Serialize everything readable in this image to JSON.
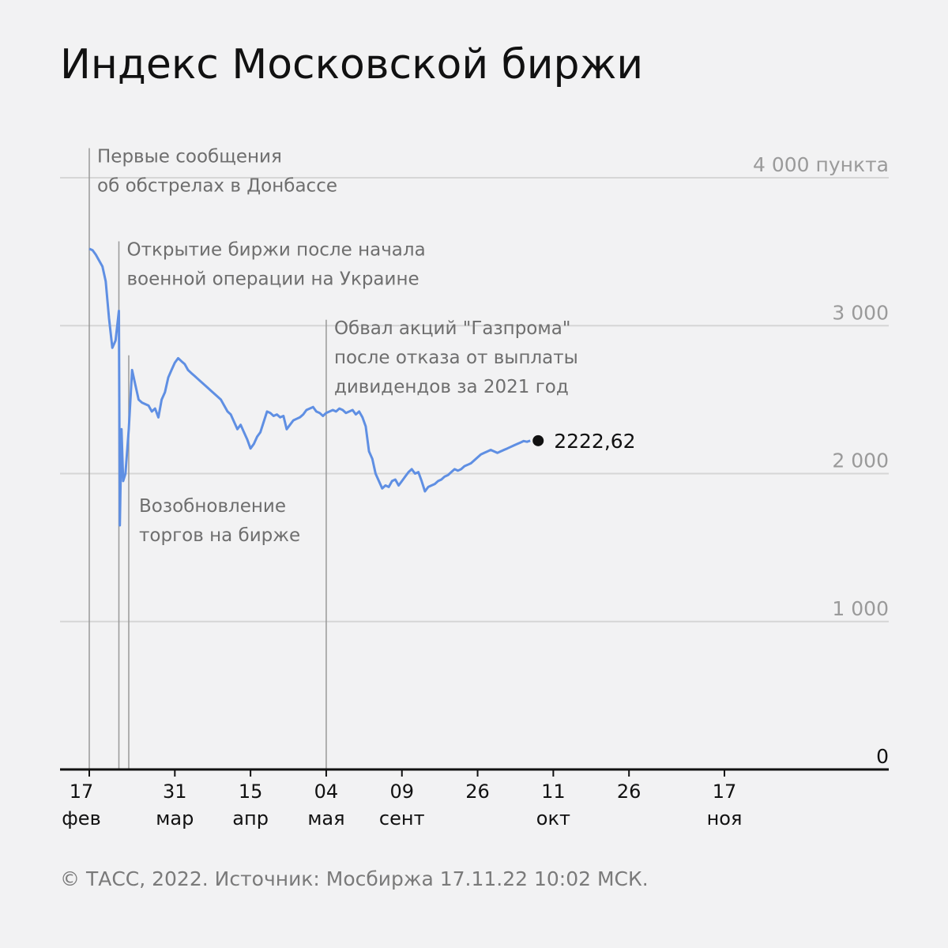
{
  "title": "Индекс Московской биржи",
  "footer": "© ТАСС, 2022. Источник: Мосбиржа 17.11.22 10:02 МСК.",
  "colors": {
    "line": "#5f8fe3",
    "grid": "#d6d6d6",
    "annotation_line": "#999999",
    "annotation_text": "#6e6e6e",
    "tick_text_y": "#9a9a9a",
    "axis": "#111111"
  },
  "chart_data": {
    "type": "line",
    "ylim": [
      0,
      4000
    ],
    "y_ticks": [
      {
        "value": 0,
        "label": "0"
      },
      {
        "value": 1000,
        "label": "1 000"
      },
      {
        "value": 2000,
        "label": "2 000"
      },
      {
        "value": 3000,
        "label": "3 000"
      },
      {
        "value": 4000,
        "label": "4 000 пункта"
      }
    ],
    "x_ticks": [
      {
        "line1": "17",
        "line2": "фев",
        "at": 0
      },
      {
        "line1": "31",
        "line2": "мар",
        "at": 26
      },
      {
        "line1": "15",
        "line2": "апр",
        "at": 49
      },
      {
        "line1": "04",
        "line2": "мая",
        "at": 72
      },
      {
        "line1": "09",
        "line2": "сент",
        "at": 95
      },
      {
        "line1": "26",
        "line2": "",
        "at": 118
      },
      {
        "line1": "11",
        "line2": "окт",
        "at": 141
      },
      {
        "line1": "26",
        "line2": "",
        "at": 164
      },
      {
        "line1": "17",
        "line2": "ноя",
        "at": 193
      }
    ],
    "series": [
      {
        "values": [
          [
            0,
            3520
          ],
          [
            1,
            3510
          ],
          [
            2,
            3480
          ],
          [
            3,
            3440
          ],
          [
            4,
            3400
          ],
          [
            5,
            3300
          ],
          [
            6,
            3050
          ],
          [
            7,
            2850
          ],
          [
            8,
            2900
          ],
          [
            9,
            3100
          ],
          [
            9.3,
            1650
          ],
          [
            9.8,
            2300
          ],
          [
            10.3,
            1950
          ],
          [
            11,
            2000
          ],
          [
            12,
            2300
          ],
          [
            13,
            2700
          ],
          [
            14,
            2600
          ],
          [
            15,
            2500
          ],
          [
            16,
            2480
          ],
          [
            17,
            2470
          ],
          [
            18,
            2460
          ],
          [
            19,
            2420
          ],
          [
            20,
            2440
          ],
          [
            21,
            2380
          ],
          [
            22,
            2500
          ],
          [
            23,
            2550
          ],
          [
            24,
            2650
          ],
          [
            25,
            2700
          ],
          [
            26,
            2750
          ],
          [
            27,
            2780
          ],
          [
            28,
            2760
          ],
          [
            29,
            2740
          ],
          [
            30,
            2700
          ],
          [
            31,
            2680
          ],
          [
            32,
            2660
          ],
          [
            33,
            2640
          ],
          [
            34,
            2620
          ],
          [
            35,
            2600
          ],
          [
            36,
            2580
          ],
          [
            37,
            2560
          ],
          [
            38,
            2540
          ],
          [
            39,
            2520
          ],
          [
            40,
            2500
          ],
          [
            41,
            2460
          ],
          [
            42,
            2420
          ],
          [
            43,
            2400
          ],
          [
            44,
            2350
          ],
          [
            45,
            2300
          ],
          [
            46,
            2330
          ],
          [
            47,
            2280
          ],
          [
            48,
            2230
          ],
          [
            49,
            2170
          ],
          [
            50,
            2200
          ],
          [
            51,
            2250
          ],
          [
            52,
            2280
          ],
          [
            53,
            2350
          ],
          [
            54,
            2420
          ],
          [
            55,
            2410
          ],
          [
            56,
            2390
          ],
          [
            57,
            2400
          ],
          [
            58,
            2380
          ],
          [
            59,
            2390
          ],
          [
            60,
            2300
          ],
          [
            61,
            2330
          ],
          [
            62,
            2360
          ],
          [
            63,
            2370
          ],
          [
            64,
            2380
          ],
          [
            65,
            2400
          ],
          [
            66,
            2430
          ],
          [
            67,
            2440
          ],
          [
            68,
            2450
          ],
          [
            69,
            2420
          ],
          [
            70,
            2410
          ],
          [
            71,
            2390
          ],
          [
            72,
            2410
          ],
          [
            73,
            2420
          ],
          [
            74,
            2430
          ],
          [
            75,
            2420
          ],
          [
            76,
            2440
          ],
          [
            77,
            2430
          ],
          [
            78,
            2410
          ],
          [
            79,
            2420
          ],
          [
            80,
            2430
          ],
          [
            81,
            2400
          ],
          [
            82,
            2420
          ],
          [
            83,
            2380
          ],
          [
            84,
            2320
          ],
          [
            85,
            2150
          ],
          [
            86,
            2100
          ],
          [
            87,
            2000
          ],
          [
            88,
            1950
          ],
          [
            89,
            1900
          ],
          [
            90,
            1920
          ],
          [
            91,
            1910
          ],
          [
            92,
            1950
          ],
          [
            93,
            1960
          ],
          [
            94,
            1920
          ],
          [
            95,
            1950
          ],
          [
            96,
            1980
          ],
          [
            97,
            2010
          ],
          [
            98,
            2030
          ],
          [
            99,
            2000
          ],
          [
            100,
            2010
          ],
          [
            101,
            1950
          ],
          [
            102,
            1880
          ],
          [
            103,
            1910
          ],
          [
            104,
            1920
          ],
          [
            105,
            1930
          ],
          [
            106,
            1950
          ],
          [
            107,
            1960
          ],
          [
            108,
            1980
          ],
          [
            109,
            1990
          ],
          [
            110,
            2010
          ],
          [
            111,
            2030
          ],
          [
            112,
            2020
          ],
          [
            113,
            2030
          ],
          [
            114,
            2050
          ],
          [
            115,
            2060
          ],
          [
            116,
            2070
          ],
          [
            117,
            2090
          ],
          [
            118,
            2110
          ],
          [
            119,
            2130
          ],
          [
            120,
            2140
          ],
          [
            121,
            2150
          ],
          [
            122,
            2160
          ],
          [
            123,
            2150
          ],
          [
            124,
            2140
          ],
          [
            125,
            2150
          ],
          [
            126,
            2160
          ],
          [
            127,
            2170
          ],
          [
            128,
            2180
          ],
          [
            129,
            2190
          ],
          [
            130,
            2200
          ],
          [
            131,
            2210
          ],
          [
            132,
            2220
          ],
          [
            133,
            2215
          ],
          [
            134,
            2222.62
          ]
        ]
      }
    ],
    "last_value_label": "2222,62",
    "annotations": [
      {
        "at": 0,
        "line_top_value": 4200,
        "lines": [
          "Первые сообщения",
          "об обстрелах в Донбассе"
        ]
      },
      {
        "at": 9,
        "line_top_value": 3570,
        "lines": [
          "Открытие биржи после начала",
          "военной операции на Украине"
        ]
      },
      {
        "at": 12,
        "line_top_value": 2800,
        "lines": [
          "Возобновление",
          "торгов на бирже"
        ]
      },
      {
        "at": 72,
        "line_top_value": 3040,
        "lines": [
          "Обвал акций \"Газпрома\"",
          "после отказа от выплаты",
          "дивидендов за 2021 год"
        ]
      }
    ]
  }
}
